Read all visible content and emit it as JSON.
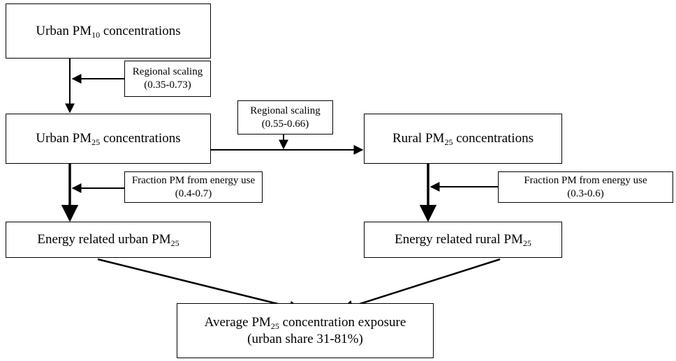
{
  "nodes": [
    {
      "text": "Urban PM",
      "sub": "10",
      "rest": " concentrations"
    },
    {
      "lines": [
        "Regional scaling",
        "(0.35-0.73)"
      ]
    },
    {
      "text": "Urban PM",
      "sub": "25",
      "rest": " concentrations"
    },
    {
      "lines": [
        "Regional scaling",
        "(0.55-0.66)"
      ]
    },
    {
      "text": "Rural PM",
      "sub": "25",
      "rest": " concentrations"
    },
    {
      "lines": [
        "Fraction PM from energy use",
        "(0.4-0.7)"
      ]
    },
    {
      "text": "Energy related urban PM",
      "sub": "25",
      "rest": ""
    },
    {
      "lines": [
        "Fraction PM from energy use",
        "(0.3-0.6)"
      ]
    },
    {
      "text": "Energy related rural PM",
      "sub": "25",
      "rest": ""
    },
    {
      "text": "Average PM",
      "sub": "25",
      "rest": " concentration exposure",
      "line2": "(urban share 31-81%)"
    }
  ]
}
